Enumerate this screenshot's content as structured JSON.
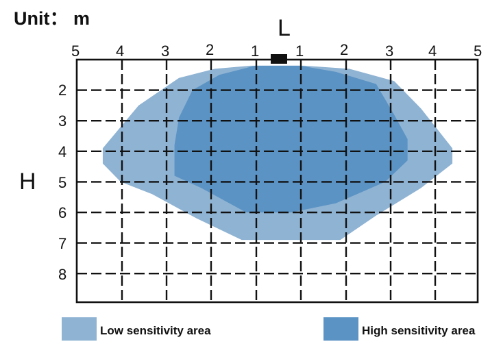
{
  "unit_text": "Unit： m",
  "axis": {
    "horizontal_letter": "L",
    "vertical_letter": "H",
    "top_ticks": [
      "5",
      "4",
      "3",
      "2",
      "1",
      "1",
      "2",
      "3",
      "4",
      "5"
    ],
    "left_ticks": [
      "2",
      "3",
      "4",
      "5",
      "6",
      "7",
      "8"
    ]
  },
  "zones": {
    "low": {
      "label": "Low sensitivity area",
      "color": "#8fb3d3",
      "points": [
        [
          -0.6,
          1.2
        ],
        [
          0.6,
          1.2
        ],
        [
          1.6,
          1.3
        ],
        [
          2.6,
          1.7
        ],
        [
          3.2,
          2.6
        ],
        [
          3.9,
          3.9
        ],
        [
          3.9,
          4.4
        ],
        [
          3.2,
          5.2
        ],
        [
          2.2,
          6.1
        ],
        [
          1.4,
          6.9
        ],
        [
          -0.8,
          6.9
        ],
        [
          -1.8,
          6.2
        ],
        [
          -2.8,
          5.4
        ],
        [
          -3.5,
          5.0
        ],
        [
          -3.9,
          4.4
        ],
        [
          -3.9,
          3.9
        ],
        [
          -3.1,
          2.5
        ],
        [
          -2.2,
          1.6
        ],
        [
          -1.4,
          1.3
        ]
      ]
    },
    "high": {
      "label": "High sensitivity area",
      "color": "#5b93c4",
      "points": [
        [
          -0.5,
          1.2
        ],
        [
          0.5,
          1.2
        ],
        [
          1.3,
          1.4
        ],
        [
          2.2,
          1.8
        ],
        [
          2.6,
          2.8
        ],
        [
          2.9,
          3.6
        ],
        [
          2.9,
          4.3
        ],
        [
          2.4,
          5.0
        ],
        [
          1.3,
          5.7
        ],
        [
          0.3,
          6.0
        ],
        [
          -0.7,
          6.0
        ],
        [
          -1.7,
          5.2
        ],
        [
          -2.3,
          4.8
        ],
        [
          -2.3,
          3.8
        ],
        [
          -2.2,
          2.9
        ],
        [
          -1.9,
          2.0
        ],
        [
          -1.3,
          1.5
        ]
      ]
    }
  },
  "sensor": {
    "color": "#111111"
  },
  "colors": {
    "grid": "#111111",
    "background": "#ffffff"
  }
}
